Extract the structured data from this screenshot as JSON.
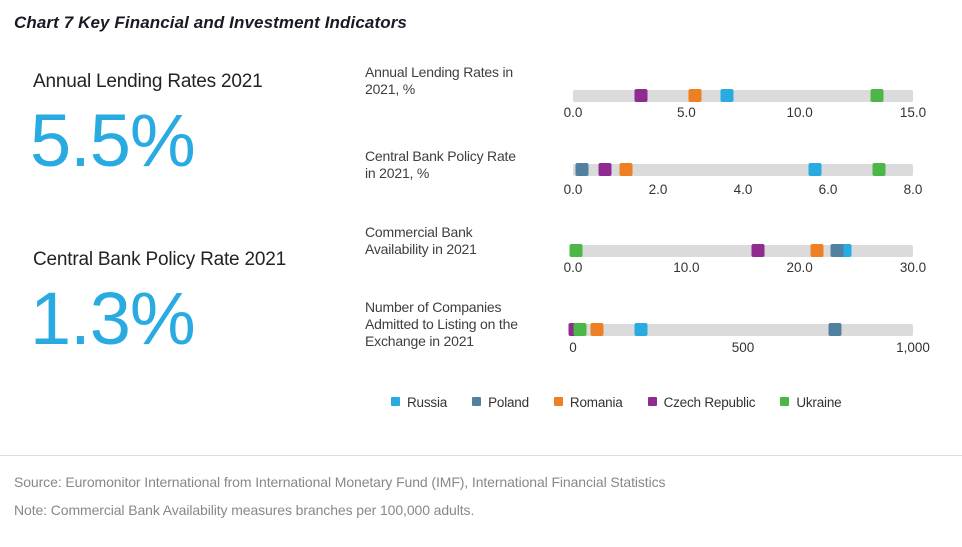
{
  "title": "Chart 7 Key Financial and Investment Indicators",
  "colors": {
    "accent": "#29ABE2",
    "track": "#DBDBDB",
    "divider": "#DDDDDD",
    "footer_text": "#888888"
  },
  "callouts": [
    {
      "label": "Annual Lending Rates 2021",
      "value": "5.5%"
    },
    {
      "label": "Central Bank Policy Rate 2021",
      "value": "1.3%"
    }
  ],
  "legend": {
    "position": "bottom",
    "items": [
      {
        "name": "Russia",
        "color": "#29ABE2"
      },
      {
        "name": "Poland",
        "color": "#52809F"
      },
      {
        "name": "Romania",
        "color": "#EE7F22"
      },
      {
        "name": "Czech Republic",
        "color": "#8F2A90"
      },
      {
        "name": "Ukraine",
        "color": "#4BB749"
      }
    ]
  },
  "chart_data": [
    {
      "type": "scatter",
      "label_lines": [
        "Annual Lending Rates in",
        "2021, %"
      ],
      "xlim": [
        0,
        15
      ],
      "tick_values": [
        0,
        5,
        10,
        15
      ],
      "tick_labels": [
        "0.0",
        "5.0",
        "10.0",
        "15.0"
      ],
      "grid": false,
      "points": [
        {
          "series": "Russia",
          "value": 6.8
        },
        {
          "series": "Romania",
          "value": 5.4
        },
        {
          "series": "Czech Republic",
          "value": 3.0
        },
        {
          "series": "Ukraine",
          "value": 13.4
        }
      ]
    },
    {
      "type": "scatter",
      "label_lines": [
        "Central Bank Policy Rate",
        "in 2021, %"
      ],
      "xlim": [
        0,
        8
      ],
      "tick_values": [
        0,
        2,
        4,
        6,
        8
      ],
      "tick_labels": [
        "0.0",
        "2.0",
        "4.0",
        "6.0",
        "8.0"
      ],
      "grid": false,
      "points": [
        {
          "series": "Russia",
          "value": 5.7
        },
        {
          "series": "Poland",
          "value": 0.2
        },
        {
          "series": "Romania",
          "value": 1.25
        },
        {
          "series": "Czech Republic",
          "value": 0.75
        },
        {
          "series": "Ukraine",
          "value": 7.2
        }
      ]
    },
    {
      "type": "scatter",
      "label_lines": [
        "Commercial Bank",
        "Availability in 2021"
      ],
      "xlim": [
        0,
        30
      ],
      "tick_values": [
        0,
        10,
        20,
        30
      ],
      "tick_labels": [
        "0.0",
        "10.0",
        "20.0",
        "30.0"
      ],
      "grid": false,
      "points": [
        {
          "series": "Russia",
          "value": 24.0
        },
        {
          "series": "Poland",
          "value": 23.3
        },
        {
          "series": "Romania",
          "value": 21.5
        },
        {
          "series": "Czech Republic",
          "value": 16.3
        },
        {
          "series": "Ukraine",
          "value": 0.3
        }
      ]
    },
    {
      "type": "scatter",
      "label_lines": [
        "Number of Companies",
        "Admitted to Listing on the",
        "Exchange in 2021"
      ],
      "xlim": [
        0,
        1000
      ],
      "tick_values": [
        0,
        500,
        1000
      ],
      "tick_labels": [
        "0",
        "500",
        "1,000"
      ],
      "grid": false,
      "points": [
        {
          "series": "Russia",
          "value": 200
        },
        {
          "series": "Poland",
          "value": 770
        },
        {
          "series": "Romania",
          "value": 70
        },
        {
          "series": "Czech Republic",
          "value": 5
        },
        {
          "series": "Ukraine",
          "value": 20
        }
      ]
    }
  ],
  "source": "Source: Euromonitor International from International Monetary Fund (IMF), International Financial Statistics",
  "note": "Note: Commercial Bank Availability measures branches per 100,000 adults."
}
